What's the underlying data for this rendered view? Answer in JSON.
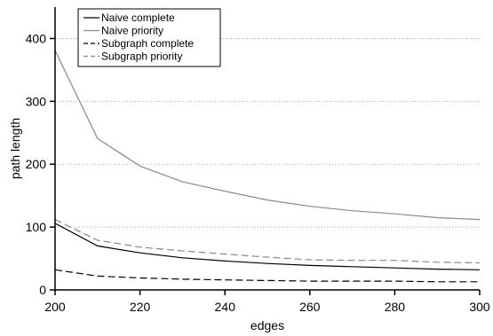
{
  "chart_data": {
    "type": "line",
    "title": "",
    "xlabel": "edges",
    "ylabel": "path length",
    "xlim": [
      200,
      300
    ],
    "ylim": [
      0,
      450
    ],
    "x_ticks": [
      200,
      220,
      240,
      260,
      280,
      300
    ],
    "y_ticks": [
      0,
      100,
      200,
      300,
      400
    ],
    "grid": "horizontal dotted at y ticks",
    "legend_placement": "top-left",
    "x": [
      200,
      210,
      220,
      230,
      240,
      250,
      260,
      270,
      280,
      290,
      300
    ],
    "series": [
      {
        "name": "Naive complete",
        "color": "#000000",
        "dash": "solid",
        "values": [
          106,
          70,
          59,
          51,
          46,
          42,
          39,
          37,
          35,
          33,
          32
        ]
      },
      {
        "name": "Naive priority",
        "color": "#888888",
        "dash": "solid",
        "values": [
          381,
          241,
          197,
          172,
          157,
          143,
          133,
          126,
          121,
          115,
          112
        ]
      },
      {
        "name": "Subgraph complete",
        "color": "#000000",
        "dash": "dashed",
        "values": [
          32,
          22,
          19,
          17,
          16,
          15,
          14,
          14,
          14,
          13,
          13
        ]
      },
      {
        "name": "Subgraph priority",
        "color": "#888888",
        "dash": "dashed",
        "values": [
          112,
          79,
          68,
          62,
          57,
          52,
          48,
          47,
          47,
          44,
          43
        ]
      }
    ]
  }
}
